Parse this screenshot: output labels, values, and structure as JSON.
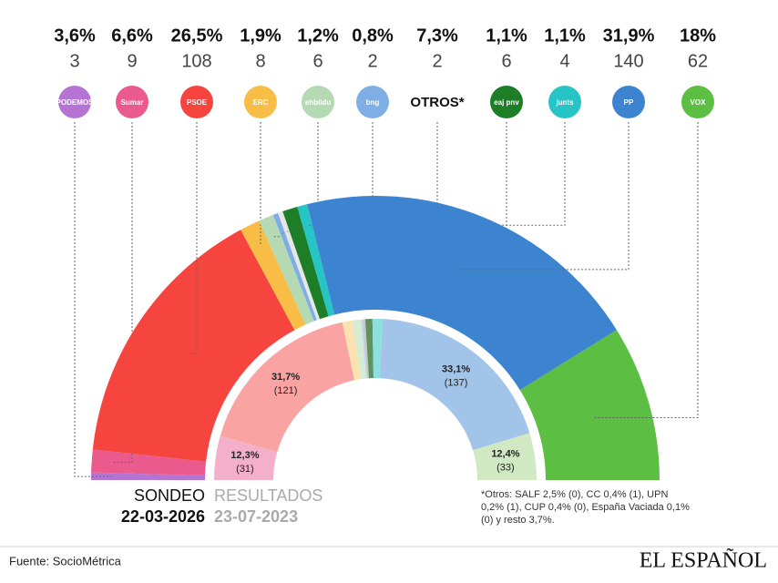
{
  "chart_data": {
    "type": "hemicycle",
    "categories": [
      "PODEMOS",
      "Sumar",
      "PSOE",
      "ERC",
      "ehbildu",
      "bng",
      "OTROS*",
      "eaj pnv",
      "junts",
      "PP",
      "VOX"
    ],
    "series": [
      {
        "name": "SONDEO",
        "date": "22-03-2026",
        "colors": [
          "#b574d4",
          "#ea5a8c",
          "#f6443f",
          "#f7bd47",
          "#b4d9b3",
          "#7eaee3",
          "#e6e6e6",
          "#1d7e27",
          "#27c4c6",
          "#3d84d0",
          "#5cbf44"
        ],
        "values": [
          3,
          9,
          108,
          8,
          6,
          2,
          2,
          6,
          4,
          140,
          62
        ],
        "vote_share": [
          3.6,
          6.6,
          26.5,
          1.9,
          1.2,
          0.8,
          7.3,
          1.1,
          1.1,
          31.9,
          18
        ],
        "vote_share_labels": [
          "3,6%",
          "6,6%",
          "26,5%",
          "1,9%",
          "1,2%",
          "0,8%",
          "7,3%",
          "1,1%",
          "1,1%",
          "31,9%",
          "18%"
        ]
      },
      {
        "name": "RESULTADOS",
        "date": "23-07-2023",
        "colors": [
          "#d9b6e8",
          "#f4afcb",
          "#f9a4a2",
          "#fde1ae",
          "#d5ebd3",
          "#bcd7f1",
          "#c9c9c9",
          "#5f9262",
          "#8ee0e0",
          "#a2c4e9",
          "#d0e9c3"
        ],
        "values": [
          null,
          31,
          121,
          7,
          6,
          1,
          2,
          5,
          7,
          137,
          33
        ],
        "value_labels": [
          null,
          "(31)",
          "(121)",
          null,
          null,
          null,
          null,
          null,
          null,
          "(137)",
          "(33)"
        ],
        "vote_share": [
          null,
          12.3,
          31.7,
          null,
          null,
          null,
          null,
          null,
          null,
          33.1,
          12.4
        ],
        "vote_share_labels": [
          null,
          "12,3%",
          "31,7%",
          null,
          null,
          null,
          null,
          null,
          null,
          "33,1%",
          "12,4%"
        ]
      }
    ],
    "footnote": "*Otros: SALF 2,5% (0), CC 0,4% (1), UPN 0,2% (1), CUP 0,4% (0), España Vaciada 0,1% (0) y resto 3,7%.",
    "source": "Fuente: SocioMétrica",
    "brand": "EL ESPAÑOL"
  }
}
